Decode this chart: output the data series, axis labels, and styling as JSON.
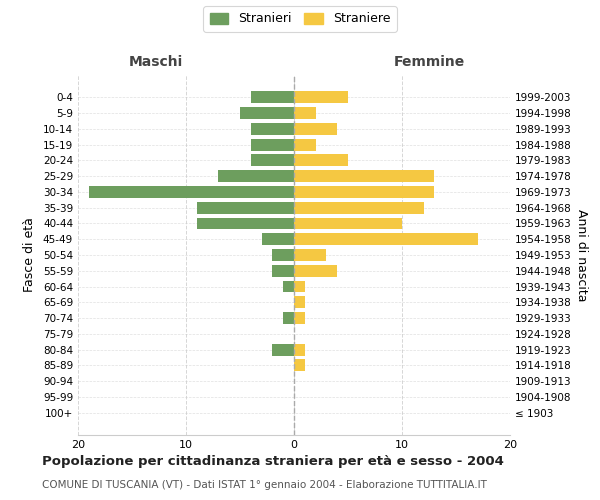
{
  "age_groups": [
    "100+",
    "95-99",
    "90-94",
    "85-89",
    "80-84",
    "75-79",
    "70-74",
    "65-69",
    "60-64",
    "55-59",
    "50-54",
    "45-49",
    "40-44",
    "35-39",
    "30-34",
    "25-29",
    "20-24",
    "15-19",
    "10-14",
    "5-9",
    "0-4"
  ],
  "birth_years": [
    "≤ 1903",
    "1904-1908",
    "1909-1913",
    "1914-1918",
    "1919-1923",
    "1924-1928",
    "1929-1933",
    "1934-1938",
    "1939-1943",
    "1944-1948",
    "1949-1953",
    "1954-1958",
    "1959-1963",
    "1964-1968",
    "1969-1973",
    "1974-1978",
    "1979-1983",
    "1984-1988",
    "1989-1993",
    "1994-1998",
    "1999-2003"
  ],
  "maschi": [
    0,
    0,
    0,
    0,
    2,
    0,
    1,
    0,
    1,
    2,
    2,
    3,
    9,
    9,
    19,
    7,
    4,
    4,
    4,
    5,
    4
  ],
  "femmine": [
    0,
    0,
    0,
    1,
    1,
    0,
    1,
    1,
    1,
    4,
    3,
    17,
    10,
    12,
    13,
    13,
    5,
    2,
    4,
    2,
    5
  ],
  "color_maschi": "#6d9e5e",
  "color_femmine": "#f5c842",
  "background_color": "#ffffff",
  "grid_color": "#cccccc",
  "title": "Popolazione per cittadinanza straniera per età e sesso - 2004",
  "subtitle": "COMUNE DI TUSCANIA (VT) - Dati ISTAT 1° gennaio 2004 - Elaborazione TUTTITALIA.IT",
  "ylabel_left": "Fasce di età",
  "ylabel_right": "Anni di nascita",
  "label_maschi": "Maschi",
  "label_femmine": "Femmine",
  "legend_stranieri": "Stranieri",
  "legend_straniere": "Straniere",
  "xlim": 20
}
